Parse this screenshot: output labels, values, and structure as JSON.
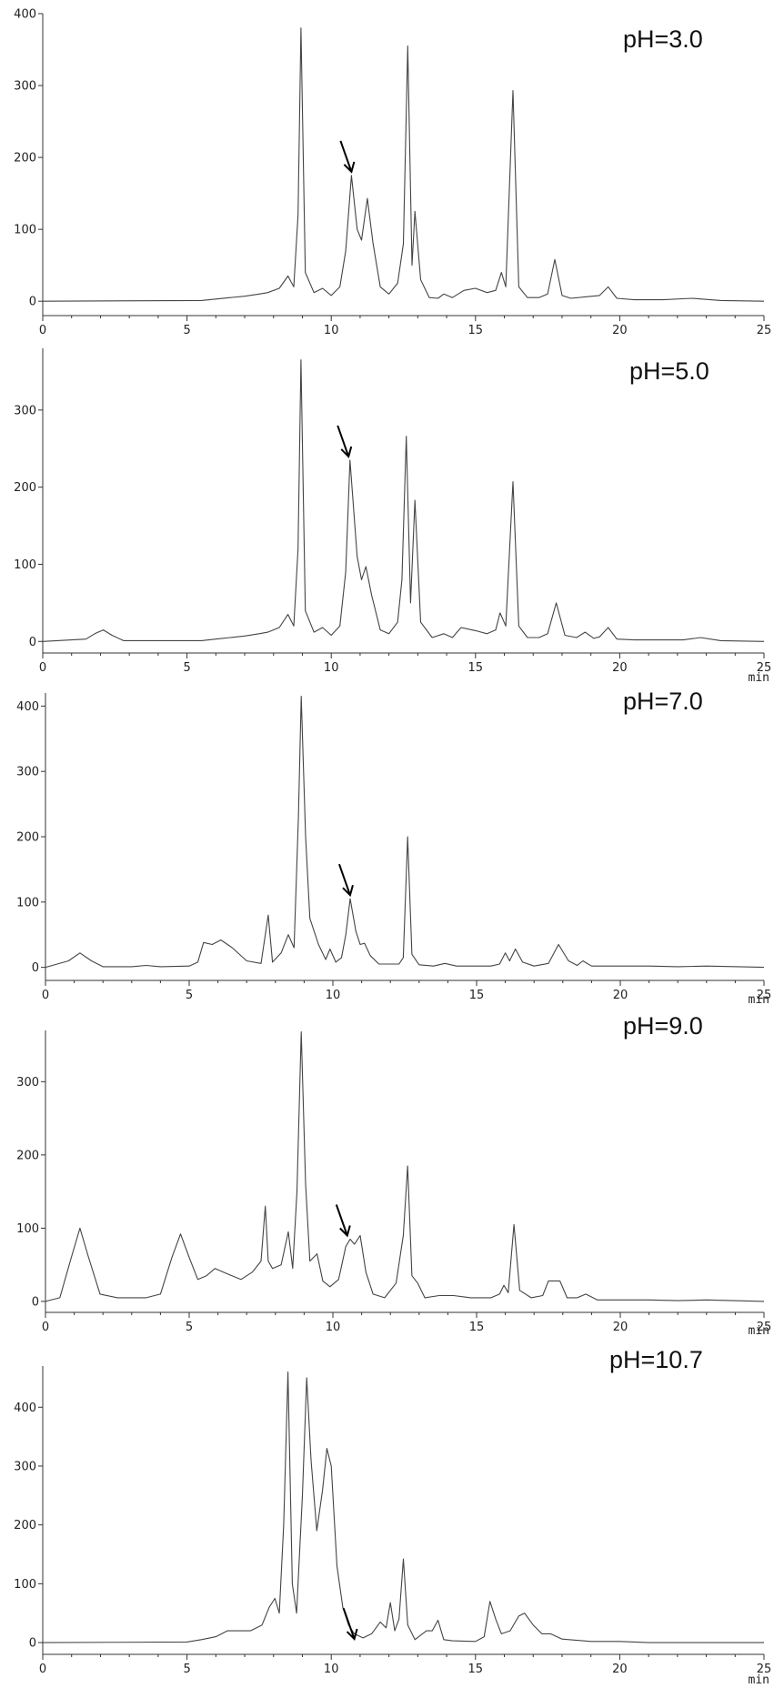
{
  "chart_data": [
    {
      "type": "line",
      "title": "pH=3.0",
      "xlabel": "",
      "ylabel": "",
      "xlim": [
        0,
        25
      ],
      "ylim": [
        -20,
        400
      ],
      "xticks": [
        "0",
        "5",
        "10",
        "15",
        "20",
        "25"
      ],
      "yticks": [
        "0",
        "100",
        "200",
        "300",
        "400"
      ],
      "arrow_at": [
        10.7,
        175
      ],
      "series": [
        {
          "x": [
            0,
            5.5,
            6.0,
            6.5,
            7.0,
            7.5,
            7.8,
            8.2,
            8.5,
            8.7,
            8.85,
            8.95,
            9.1,
            9.4,
            9.7,
            10.0,
            10.3,
            10.5,
            10.7,
            10.9,
            11.05,
            11.25,
            11.45,
            11.7,
            12.0,
            12.3,
            12.5,
            12.65,
            12.8,
            12.9,
            13.1,
            13.4,
            13.7,
            13.9,
            14.2,
            14.6,
            15.0,
            15.4,
            15.7,
            15.9,
            16.05,
            16.3,
            16.5,
            16.8,
            17.2,
            17.5,
            17.75,
            18.0,
            18.3,
            18.8,
            19.3,
            19.6,
            19.9,
            20.5,
            21.5,
            22.5,
            23.5,
            25
          ],
          "y": [
            0,
            1,
            3,
            5,
            7,
            10,
            12,
            18,
            35,
            20,
            120,
            380,
            40,
            12,
            18,
            8,
            20,
            70,
            175,
            100,
            85,
            143,
            80,
            20,
            10,
            25,
            80,
            355,
            50,
            125,
            30,
            5,
            4,
            10,
            5,
            15,
            18,
            12,
            15,
            40,
            20,
            293,
            20,
            5,
            5,
            10,
            58,
            8,
            4,
            6,
            8,
            20,
            4,
            2,
            2,
            4,
            1,
            0
          ]
        }
      ]
    },
    {
      "type": "line",
      "title": "pH=5.0",
      "xlabel": "min",
      "ylabel": "",
      "xlim": [
        0,
        25
      ],
      "ylim": [
        -15,
        380
      ],
      "xticks": [
        "0",
        "5",
        "10",
        "15",
        "20",
        "25"
      ],
      "yticks": [
        "0",
        "100",
        "200",
        "300"
      ],
      "arrow_at": [
        10.6,
        235
      ],
      "series": [
        {
          "x": [
            0,
            1.5,
            1.8,
            2.1,
            2.4,
            2.8,
            5.5,
            6.0,
            6.5,
            7.0,
            7.5,
            7.8,
            8.2,
            8.5,
            8.7,
            8.85,
            8.95,
            9.1,
            9.4,
            9.7,
            10.0,
            10.3,
            10.5,
            10.65,
            10.9,
            11.05,
            11.2,
            11.4,
            11.7,
            12.0,
            12.3,
            12.45,
            12.6,
            12.75,
            12.9,
            13.1,
            13.5,
            13.9,
            14.2,
            14.5,
            15.0,
            15.4,
            15.7,
            15.85,
            16.05,
            16.3,
            16.5,
            16.8,
            17.2,
            17.5,
            17.8,
            18.1,
            18.5,
            18.8,
            19.1,
            19.3,
            19.6,
            19.9,
            20.5,
            21.5,
            22.2,
            22.8,
            23.5,
            25
          ],
          "y": [
            0,
            3,
            10,
            15,
            8,
            1,
            1,
            3,
            5,
            7,
            10,
            12,
            18,
            35,
            20,
            120,
            365,
            40,
            12,
            18,
            8,
            20,
            90,
            235,
            110,
            80,
            97,
            60,
            15,
            10,
            25,
            80,
            266,
            50,
            183,
            25,
            5,
            10,
            5,
            18,
            14,
            10,
            15,
            37,
            20,
            207,
            20,
            5,
            5,
            10,
            50,
            8,
            5,
            12,
            4,
            6,
            18,
            3,
            2,
            2,
            2,
            5,
            1,
            0
          ]
        }
      ]
    },
    {
      "type": "line",
      "title": "pH=7.0",
      "xlabel": "min",
      "ylabel": "",
      "xlim": [
        0,
        25
      ],
      "ylim": [
        -20,
        420
      ],
      "xticks": [
        "0",
        "5",
        "10",
        "15",
        "20",
        "25"
      ],
      "yticks": [
        "0",
        "100",
        "200",
        "300",
        "400"
      ],
      "arrow_at": [
        10.6,
        105
      ],
      "series": [
        {
          "x": [
            0,
            0.8,
            1.2,
            1.6,
            2.0,
            3.0,
            3.5,
            4.0,
            5.0,
            5.3,
            5.5,
            5.8,
            6.1,
            6.5,
            7.0,
            7.5,
            7.75,
            7.9,
            8.2,
            8.45,
            8.65,
            8.8,
            8.9,
            9.05,
            9.2,
            9.5,
            9.75,
            9.9,
            10.1,
            10.3,
            10.45,
            10.6,
            10.8,
            10.95,
            11.1,
            11.3,
            11.6,
            12.0,
            12.3,
            12.45,
            12.6,
            12.75,
            13.0,
            13.5,
            13.9,
            14.3,
            14.8,
            15.5,
            15.8,
            16.0,
            16.15,
            16.35,
            16.6,
            17.0,
            17.5,
            17.85,
            18.2,
            18.5,
            18.7,
            19.0,
            20.0,
            21.0,
            22.0,
            23.0,
            25
          ],
          "y": [
            0,
            10,
            22,
            10,
            1,
            1,
            3,
            1,
            2,
            8,
            38,
            35,
            42,
            30,
            10,
            6,
            80,
            8,
            22,
            50,
            30,
            230,
            415,
            200,
            75,
            35,
            12,
            28,
            8,
            15,
            50,
            105,
            55,
            35,
            37,
            18,
            5,
            5,
            5,
            15,
            200,
            20,
            4,
            2,
            6,
            2,
            2,
            2,
            5,
            22,
            10,
            28,
            8,
            2,
            6,
            35,
            10,
            3,
            10,
            2,
            2,
            2,
            1,
            2,
            0
          ]
        }
      ]
    },
    {
      "type": "line",
      "title": "pH=9.0",
      "xlabel": "min",
      "ylabel": "",
      "xlim": [
        0,
        25
      ],
      "ylim": [
        -15,
        370
      ],
      "xticks": [
        "0",
        "5",
        "10",
        "15",
        "20",
        "25"
      ],
      "yticks": [
        "0",
        "100",
        "200",
        "300"
      ],
      "arrow_at": [
        10.5,
        85
      ],
      "series": [
        {
          "x": [
            0,
            0.5,
            0.9,
            1.2,
            1.5,
            1.9,
            2.5,
            3.5,
            4.0,
            4.4,
            4.7,
            5.0,
            5.3,
            5.6,
            5.9,
            6.3,
            6.8,
            7.2,
            7.5,
            7.65,
            7.75,
            7.9,
            8.2,
            8.45,
            8.6,
            8.75,
            8.9,
            9.05,
            9.2,
            9.45,
            9.65,
            9.9,
            10.2,
            10.45,
            10.6,
            10.75,
            10.95,
            11.15,
            11.4,
            11.8,
            12.2,
            12.45,
            12.6,
            12.75,
            12.95,
            13.2,
            13.7,
            14.2,
            14.8,
            15.5,
            15.8,
            15.95,
            16.1,
            16.3,
            16.5,
            16.9,
            17.3,
            17.5,
            17.7,
            17.9,
            18.15,
            18.5,
            18.8,
            19.2,
            20.0,
            21.0,
            22.0,
            23.0,
            25
          ],
          "y": [
            0,
            5,
            60,
            100,
            60,
            10,
            5,
            5,
            10,
            60,
            92,
            60,
            30,
            35,
            45,
            38,
            30,
            40,
            55,
            130,
            55,
            45,
            50,
            95,
            45,
            150,
            368,
            160,
            55,
            65,
            28,
            20,
            30,
            75,
            85,
            78,
            90,
            40,
            10,
            5,
            25,
            90,
            185,
            35,
            25,
            5,
            8,
            8,
            5,
            5,
            10,
            22,
            12,
            105,
            15,
            5,
            8,
            28,
            28,
            28,
            5,
            5,
            10,
            2,
            2,
            2,
            1,
            2,
            0
          ]
        }
      ]
    },
    {
      "type": "line",
      "title": "pH=10.7",
      "xlabel": "min",
      "ylabel": "",
      "xlim": [
        0,
        25
      ],
      "ylim": [
        -20,
        470
      ],
      "xticks": [
        "0",
        "5",
        "10",
        "15",
        "20",
        "25"
      ],
      "yticks": [
        "0",
        "100",
        "200",
        "300",
        "400"
      ],
      "arrow_at": [
        10.8,
        0
      ],
      "series": [
        {
          "x": [
            0,
            5.0,
            5.5,
            6.0,
            6.4,
            6.8,
            7.2,
            7.6,
            7.85,
            8.05,
            8.2,
            8.35,
            8.5,
            8.65,
            8.8,
            9.0,
            9.15,
            9.3,
            9.5,
            9.7,
            9.85,
            10.0,
            10.2,
            10.4,
            10.6,
            10.8,
            11.1,
            11.4,
            11.7,
            11.9,
            12.05,
            12.2,
            12.35,
            12.5,
            12.65,
            12.9,
            13.3,
            13.5,
            13.7,
            13.9,
            14.2,
            15.0,
            15.3,
            15.5,
            15.7,
            15.9,
            16.2,
            16.5,
            16.7,
            17.0,
            17.3,
            17.6,
            18.0,
            19.0,
            20.0,
            21.0,
            25
          ],
          "y": [
            0,
            1,
            5,
            10,
            20,
            20,
            20,
            30,
            60,
            75,
            50,
            200,
            460,
            100,
            50,
            250,
            450,
            310,
            190,
            260,
            330,
            300,
            130,
            60,
            30,
            15,
            8,
            15,
            35,
            25,
            68,
            20,
            40,
            142,
            30,
            5,
            20,
            20,
            38,
            5,
            3,
            2,
            10,
            70,
            40,
            15,
            20,
            45,
            50,
            30,
            15,
            15,
            6,
            2,
            2,
            0,
            0
          ]
        }
      ]
    }
  ]
}
